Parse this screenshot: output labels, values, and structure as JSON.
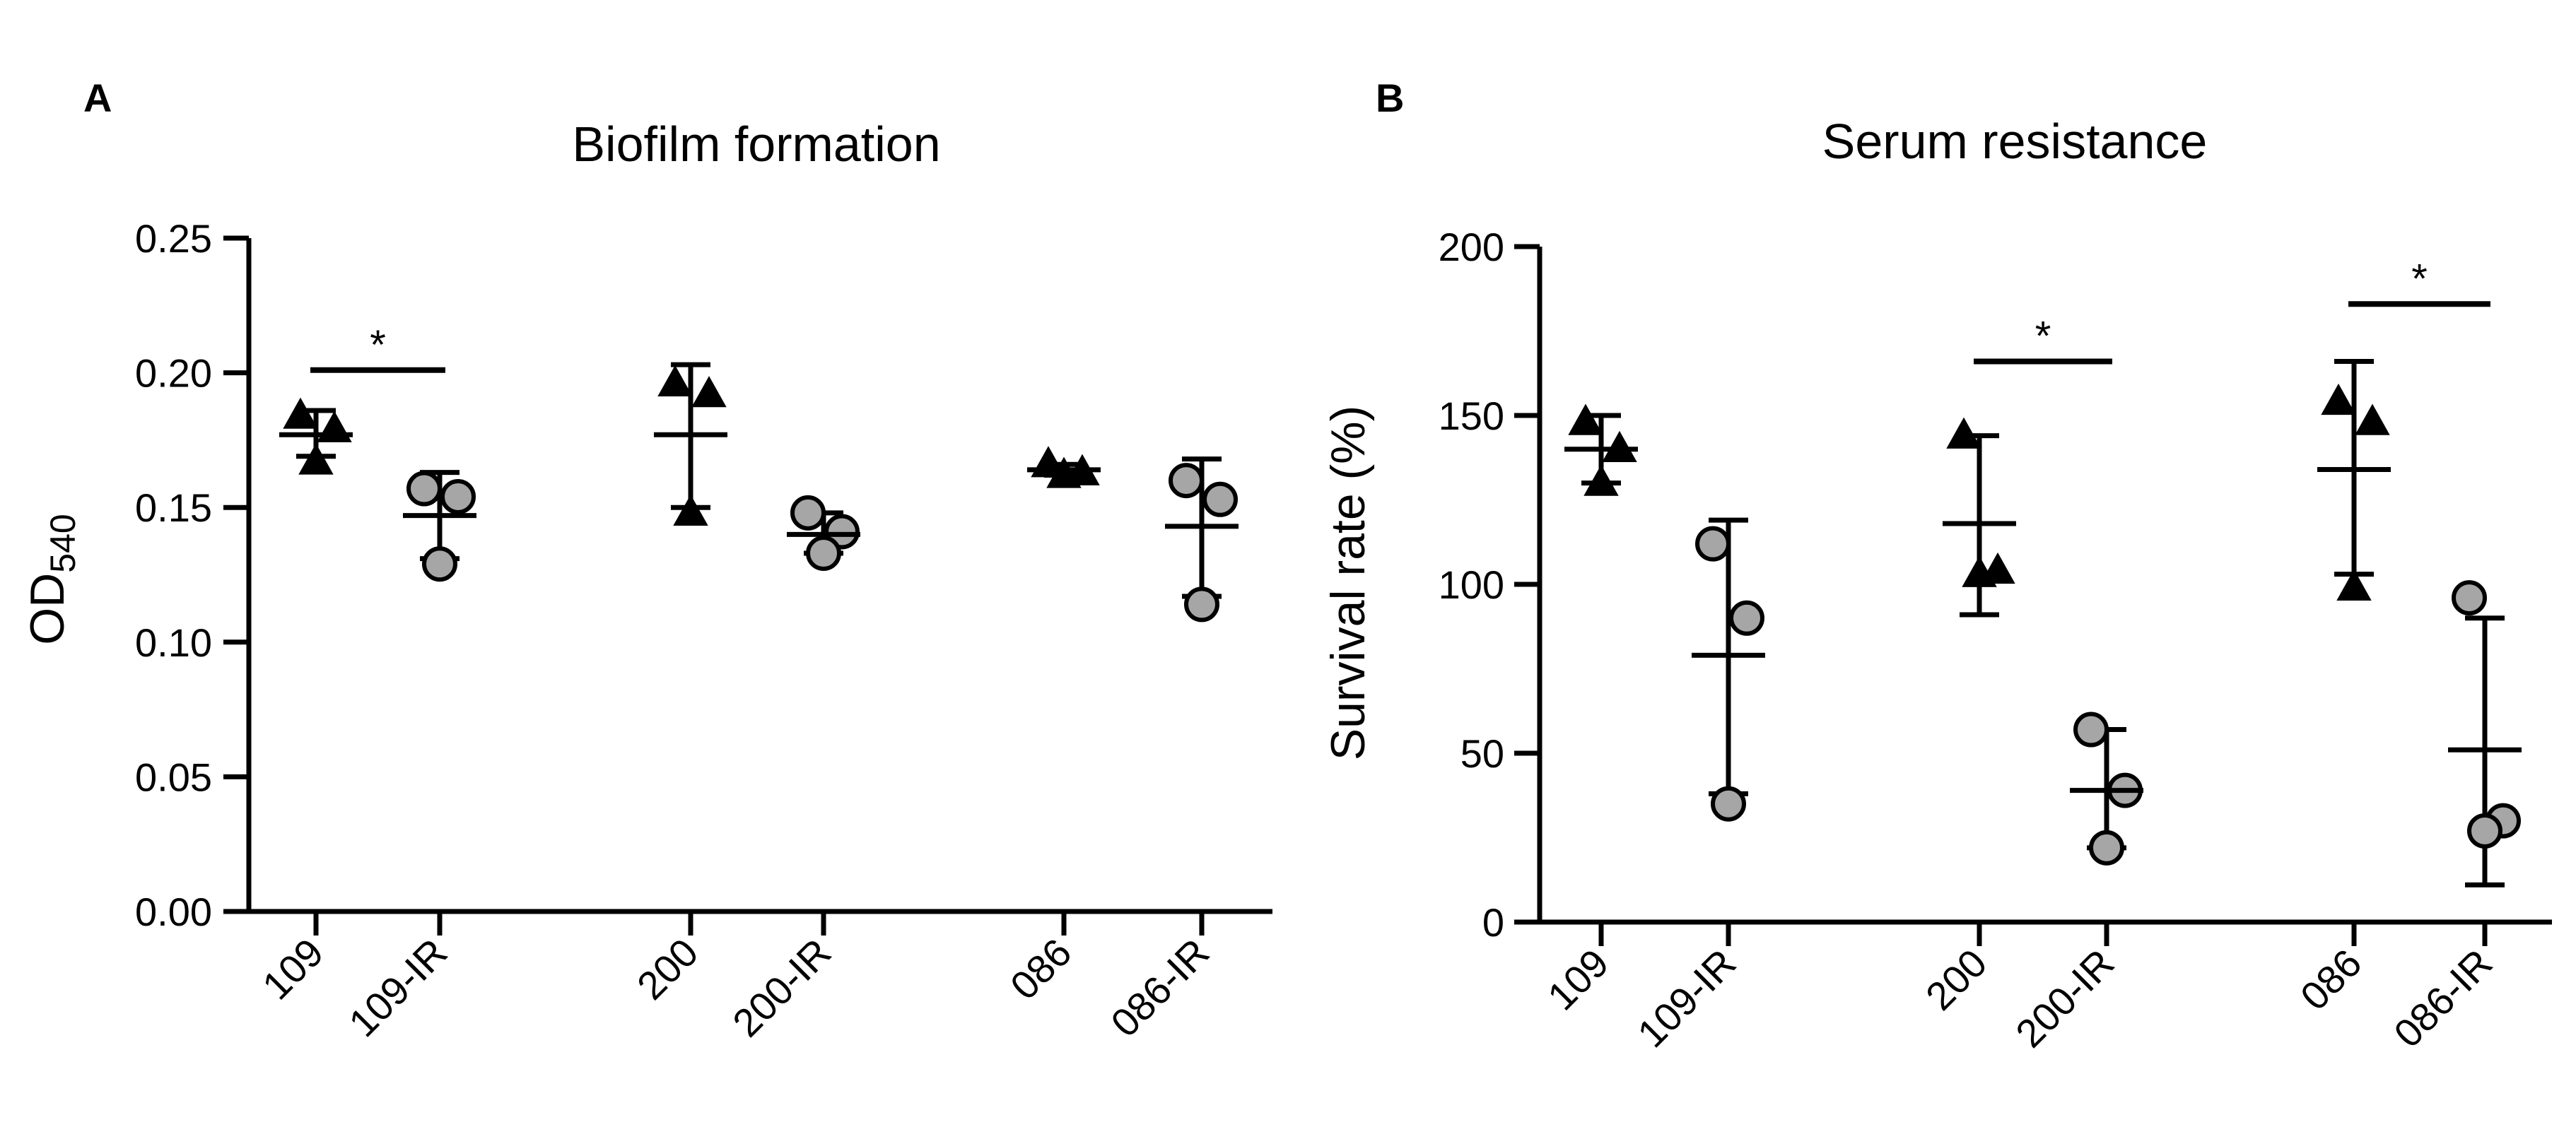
{
  "chart_data": [
    {
      "type": "scatter",
      "panel_label": "A",
      "title": "Biofilm formation",
      "xlabel": "",
      "ylabel": "OD",
      "ylabel_sub": "540",
      "ylim": [
        0,
        0.25
      ],
      "yticks": [
        0.0,
        0.05,
        0.1,
        0.15,
        0.2,
        0.25
      ],
      "ytick_labels": [
        "0.00",
        "0.05",
        "0.10",
        "0.15",
        "0.20",
        "0.25"
      ],
      "categories": [
        "109",
        "109-IR",
        "200",
        "200-IR",
        "086",
        "086-IR"
      ],
      "groups": [
        {
          "category": "109",
          "marker": "triangle",
          "points": [
            0.184,
            0.179,
            0.167
          ],
          "mean": 0.177,
          "error": [
            0.169,
            0.186
          ]
        },
        {
          "category": "109-IR",
          "marker": "circle",
          "points": [
            0.157,
            0.154,
            0.129
          ],
          "mean": 0.147,
          "error": [
            0.131,
            0.163
          ]
        },
        {
          "category": "200",
          "marker": "triangle",
          "points": [
            0.196,
            0.192,
            0.148
          ],
          "mean": 0.177,
          "error": [
            0.15,
            0.203
          ]
        },
        {
          "category": "200-IR",
          "marker": "circle",
          "points": [
            0.148,
            0.141,
            0.133
          ],
          "mean": 0.14,
          "error": [
            0.133,
            0.148
          ]
        },
        {
          "category": "086",
          "marker": "triangle",
          "points": [
            0.166,
            0.163,
            0.162
          ],
          "mean": 0.164,
          "error": [
            0.162,
            0.166
          ]
        },
        {
          "category": "086-IR",
          "marker": "circle",
          "points": [
            0.16,
            0.153,
            0.114
          ],
          "mean": 0.143,
          "error": [
            0.117,
            0.168
          ]
        }
      ],
      "significance": [
        {
          "from": "109",
          "to": "109-IR",
          "y": 0.201,
          "label": "*"
        }
      ]
    },
    {
      "type": "scatter",
      "panel_label": "B",
      "title": "Serum resistance",
      "xlabel": "",
      "ylabel": "Survival rate (%)",
      "ylim": [
        0,
        200
      ],
      "yticks": [
        0,
        50,
        100,
        150,
        200
      ],
      "ytick_labels": [
        "0",
        "50",
        "100",
        "150",
        "200"
      ],
      "categories": [
        "109",
        "109-IR",
        "200",
        "200-IR",
        "086",
        "086-IR"
      ],
      "groups": [
        {
          "category": "109",
          "marker": "triangle",
          "points": [
            148,
            140,
            130
          ],
          "mean": 140,
          "error": [
            130,
            150
          ]
        },
        {
          "category": "109-IR",
          "marker": "circle",
          "points": [
            112,
            90,
            35
          ],
          "mean": 79,
          "error": [
            38,
            119
          ]
        },
        {
          "category": "200",
          "marker": "triangle",
          "points": [
            144,
            104,
            103
          ],
          "mean": 118,
          "error": [
            91,
            144
          ]
        },
        {
          "category": "200-IR",
          "marker": "circle",
          "points": [
            57,
            39,
            22
          ],
          "mean": 39,
          "error": [
            22,
            57
          ]
        },
        {
          "category": "086",
          "marker": "triangle",
          "points": [
            154,
            148,
            99
          ],
          "mean": 134,
          "error": [
            103,
            166
          ]
        },
        {
          "category": "086-IR",
          "marker": "circle",
          "points": [
            96,
            30,
            27
          ],
          "mean": 51,
          "error": [
            11,
            90
          ]
        }
      ],
      "significance": [
        {
          "from": "200",
          "to": "200-IR",
          "y": 166,
          "label": "*"
        },
        {
          "from": "086",
          "to": "086-IR",
          "y": 183,
          "label": "*"
        }
      ]
    }
  ],
  "colors": {
    "triangle_fill": "#000000",
    "circle_fill": "#a6a6a6",
    "circle_stroke": "#000000",
    "axis": "#000000"
  }
}
